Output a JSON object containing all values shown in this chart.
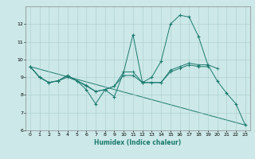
{
  "title": "",
  "xlabel": "Humidex (Indice chaleur)",
  "ylabel": "",
  "background_color": "#cce8e8",
  "grid_color": "#aacccc",
  "line_color": "#1a7a6e",
  "xlim": [
    -0.5,
    23.5
  ],
  "ylim": [
    6,
    13
  ],
  "xticks": [
    0,
    1,
    2,
    3,
    4,
    5,
    6,
    7,
    8,
    9,
    10,
    11,
    12,
    13,
    14,
    15,
    16,
    17,
    18,
    19,
    20,
    21,
    22,
    23
  ],
  "yticks": [
    6,
    7,
    8,
    9,
    10,
    11,
    12
  ],
  "series": [
    {
      "x": [
        0,
        1,
        2,
        3,
        4,
        5,
        6,
        7,
        8,
        9,
        10,
        11,
        12,
        13,
        14,
        15,
        16,
        17,
        18,
        19,
        20,
        21,
        22,
        23
      ],
      "y": [
        9.6,
        9.0,
        8.7,
        8.8,
        9.1,
        8.8,
        8.3,
        7.5,
        8.3,
        7.9,
        9.3,
        11.4,
        8.7,
        9.0,
        9.9,
        12.0,
        12.5,
        12.4,
        11.3,
        9.7,
        8.8,
        8.1,
        7.5,
        6.3
      ],
      "marker": true
    },
    {
      "x": [
        0,
        1,
        2,
        3,
        4,
        5,
        6,
        7,
        8,
        9,
        10,
        11,
        12,
        13,
        14,
        15,
        16,
        17,
        18,
        19,
        20
      ],
      "y": [
        9.6,
        9.0,
        8.7,
        8.8,
        9.1,
        8.8,
        8.55,
        8.2,
        8.3,
        8.5,
        9.3,
        9.3,
        8.7,
        8.7,
        8.7,
        9.4,
        9.6,
        9.8,
        9.7,
        9.7,
        9.5
      ],
      "marker": true
    },
    {
      "x": [
        0,
        1,
        2,
        3,
        4,
        5,
        6,
        7,
        8,
        9,
        10,
        11,
        12,
        13,
        14,
        15,
        16,
        17,
        18,
        19
      ],
      "y": [
        9.6,
        9.0,
        8.7,
        8.8,
        9.0,
        8.8,
        8.5,
        8.2,
        8.3,
        8.5,
        9.1,
        9.1,
        8.7,
        8.7,
        8.7,
        9.3,
        9.5,
        9.7,
        9.6,
        9.6
      ],
      "marker": true
    },
    {
      "x": [
        0,
        23
      ],
      "y": [
        9.6,
        6.3
      ],
      "marker": false
    }
  ]
}
